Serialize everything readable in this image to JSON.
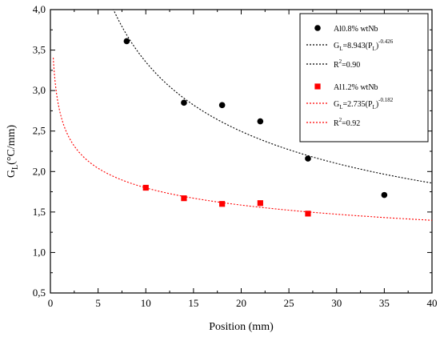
{
  "chart_data": {
    "type": "scatter",
    "xlabel": "Position (mm)",
    "ylabel": {
      "main": "G",
      "sub": "L",
      "unit": "(°C/mm)"
    },
    "xlim": [
      0,
      40
    ],
    "ylim": [
      0.5,
      4.0
    ],
    "x_ticks": [
      0,
      5,
      10,
      15,
      20,
      25,
      30,
      35,
      40
    ],
    "y_ticks": [
      0.5,
      1.0,
      1.5,
      2.0,
      2.5,
      3.0,
      3.5,
      4.0
    ],
    "y_tick_labels": [
      "0,5",
      "1,0",
      "1,5",
      "2,0",
      "2,5",
      "3,0",
      "3,5",
      "4,0"
    ],
    "grid": false,
    "legend_position": "top-right",
    "series": [
      {
        "name": "Al0.8% wtNb",
        "marker": "circle",
        "color": "#000000",
        "points": [
          {
            "x": 8,
            "y": 3.61
          },
          {
            "x": 14,
            "y": 2.85
          },
          {
            "x": 18,
            "y": 2.82
          },
          {
            "x": 22,
            "y": 2.62
          },
          {
            "x": 27,
            "y": 2.16
          },
          {
            "x": 35,
            "y": 1.71
          }
        ],
        "fit": {
          "a": 8.943,
          "b": -0.426,
          "color": "#000000",
          "eq_label": {
            "pre": "G",
            "sub": "L",
            "mid": "=8.943(P",
            "sub2": "L",
            "close": ")",
            "sup": "-0.426"
          },
          "r2_label": {
            "pre": "R",
            "sup": "2",
            "post": "=0.90"
          }
        }
      },
      {
        "name": "Al1.2% wtNb",
        "marker": "square",
        "color": "#ff0000",
        "points": [
          {
            "x": 10,
            "y": 1.8
          },
          {
            "x": 14,
            "y": 1.67
          },
          {
            "x": 18,
            "y": 1.6
          },
          {
            "x": 22,
            "y": 1.61
          },
          {
            "x": 27,
            "y": 1.48
          }
        ],
        "fit": {
          "a": 2.735,
          "b": -0.182,
          "color": "#ff0000",
          "eq_label": {
            "pre": "G",
            "sub": "L",
            "mid": "=2.735(P",
            "sub2": "L",
            "close": ")",
            "sup": "-0.182"
          },
          "r2_label": {
            "pre": "R",
            "sup": "2",
            "post": "=0.92"
          }
        }
      }
    ]
  }
}
